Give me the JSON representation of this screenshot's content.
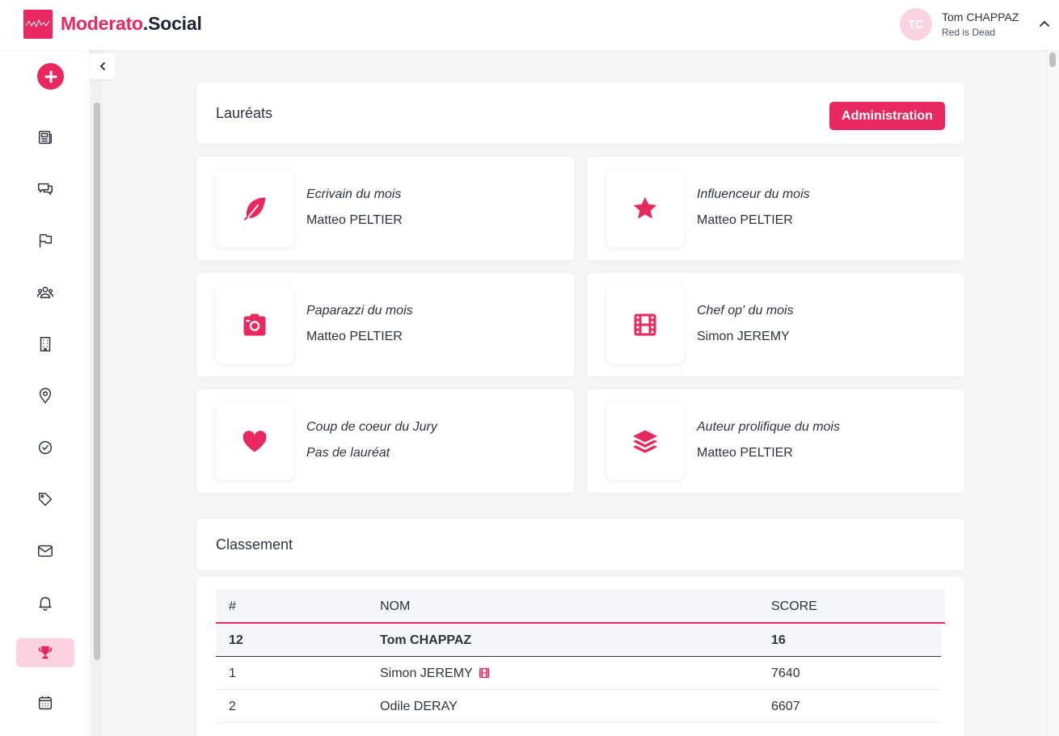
{
  "header": {
    "brand_part1": "Moderato",
    "brand_part2": ".Social",
    "user_initials": "TC",
    "user_name": "Tom CHAPPAZ",
    "user_subtitle": "Red is Dead"
  },
  "sidebar": {
    "items": [
      "newspaper-icon",
      "chat-icon",
      "flag-icon",
      "users-icon",
      "building-icon",
      "location-icon",
      "check-circle-icon",
      "tag-icon",
      "mail-icon",
      "bell-icon",
      "trophy-icon",
      "calendar-icon"
    ],
    "active": "trophy-icon"
  },
  "laureats": {
    "title": "Lauréats",
    "admin_label": "Administration",
    "awards": [
      {
        "icon": "feather-icon",
        "category": "Ecrivain du mois",
        "winner": "Matteo PELTIER"
      },
      {
        "icon": "star-icon",
        "category": "Influenceur du mois",
        "winner": "Matteo PELTIER"
      },
      {
        "icon": "camera-icon",
        "category": "Paparazzi du mois",
        "winner": "Matteo PELTIER"
      },
      {
        "icon": "film-icon",
        "category": "Chef op' du mois",
        "winner": "Simon JEREMY"
      },
      {
        "icon": "heart-icon",
        "category": "Coup de coeur du Jury",
        "winner": "Pas de lauréat"
      },
      {
        "icon": "layers-icon",
        "category": "Auteur prolifique du mois",
        "winner": "Matteo PELTIER"
      }
    ]
  },
  "classement": {
    "title": "Classement",
    "columns": [
      "#",
      "NOM",
      "SCORE"
    ],
    "current_user": {
      "rank": "12",
      "name": "Tom CHAPPAZ",
      "score": "16"
    },
    "rows": [
      {
        "rank": "1",
        "name": "Simon JEREMY",
        "score": "7640",
        "badge": "film-icon"
      },
      {
        "rank": "2",
        "name": "Odile DERAY",
        "score": "6607"
      }
    ]
  },
  "colors": {
    "accent": "#e8285f",
    "accent_light": "#fbd3df",
    "text": "#2d3440",
    "background": "#f5f6f8"
  }
}
